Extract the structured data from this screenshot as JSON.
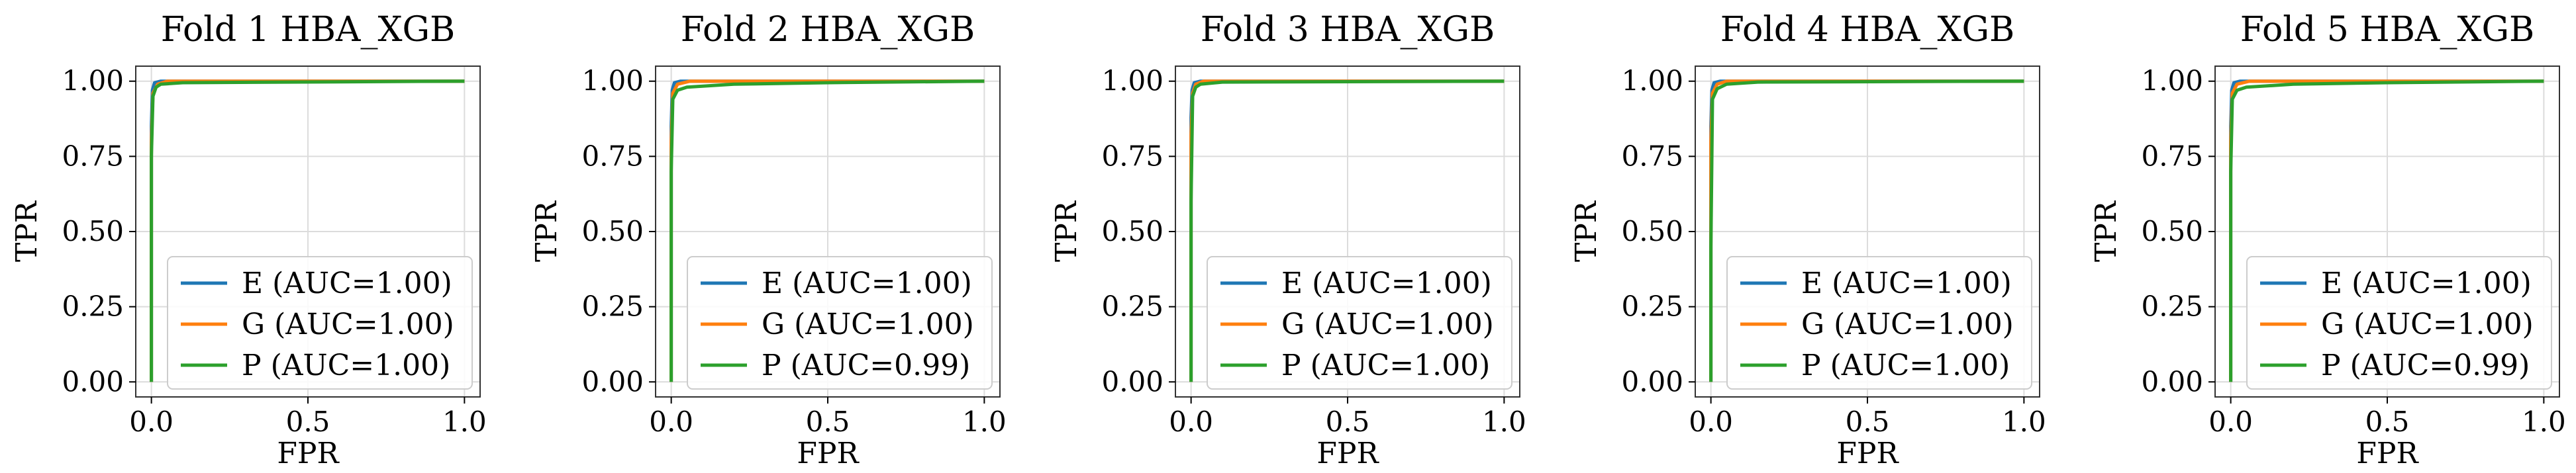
{
  "figure": {
    "colors": {
      "E": "#1f77b4",
      "G": "#ff7f0e",
      "P": "#2ca02c",
      "grid": "#dcdcdc",
      "frame": "#333333"
    }
  },
  "chart_data": [
    {
      "type": "line",
      "title": "Fold 1 HBA_XGB",
      "xlabel": "FPR",
      "ylabel": "TPR",
      "xlim": [
        0.0,
        1.0
      ],
      "ylim": [
        0.0,
        1.0
      ],
      "xticks": [
        "0.0",
        "0.5",
        "1.0"
      ],
      "yticks": [
        "0.00",
        "0.25",
        "0.50",
        "0.75",
        "1.00"
      ],
      "grid": true,
      "legend_position": "lower-right",
      "series": [
        {
          "name": "E (AUC=1.00)",
          "color": "#1f77b4",
          "x": [
            0,
            0,
            0.003,
            0.01,
            0.03,
            1.0
          ],
          "y": [
            0,
            0.85,
            0.97,
            0.995,
            1.0,
            1.0
          ]
        },
        {
          "name": "G (AUC=1.00)",
          "color": "#ff7f0e",
          "x": [
            0,
            0,
            0.005,
            0.02,
            0.05,
            1.0
          ],
          "y": [
            0,
            0.8,
            0.96,
            0.99,
            1.0,
            1.0
          ]
        },
        {
          "name": "P (AUC=1.00)",
          "color": "#2ca02c",
          "x": [
            0,
            0,
            0.005,
            0.015,
            0.03,
            0.1,
            1.0
          ],
          "y": [
            0,
            0.75,
            0.95,
            0.98,
            0.99,
            0.995,
            1.0
          ]
        }
      ]
    },
    {
      "type": "line",
      "title": "Fold 2 HBA_XGB",
      "xlabel": "FPR",
      "ylabel": "TPR",
      "xlim": [
        0.0,
        1.0
      ],
      "ylim": [
        0.0,
        1.0
      ],
      "xticks": [
        "0.0",
        "0.5",
        "1.0"
      ],
      "yticks": [
        "0.00",
        "0.25",
        "0.50",
        "0.75",
        "1.00"
      ],
      "grid": true,
      "legend_position": "lower-right",
      "series": [
        {
          "name": "E (AUC=1.00)",
          "color": "#1f77b4",
          "x": [
            0,
            0,
            0.003,
            0.01,
            0.03,
            1.0
          ],
          "y": [
            0,
            0.85,
            0.97,
            0.995,
            1.0,
            1.0
          ]
        },
        {
          "name": "G (AUC=1.00)",
          "color": "#ff7f0e",
          "x": [
            0,
            0,
            0.005,
            0.02,
            0.06,
            1.0
          ],
          "y": [
            0,
            0.8,
            0.96,
            0.99,
            1.0,
            1.0
          ]
        },
        {
          "name": "P (AUC=0.99)",
          "color": "#2ca02c",
          "x": [
            0,
            0,
            0.005,
            0.02,
            0.05,
            0.2,
            0.5,
            1.0
          ],
          "y": [
            0,
            0.7,
            0.94,
            0.97,
            0.98,
            0.99,
            0.995,
            1.0
          ]
        }
      ]
    },
    {
      "type": "line",
      "title": "Fold 3 HBA_XGB",
      "xlabel": "FPR",
      "ylabel": "TPR",
      "xlim": [
        0.0,
        1.0
      ],
      "ylim": [
        0.0,
        1.0
      ],
      "xticks": [
        "0.0",
        "0.5",
        "1.0"
      ],
      "yticks": [
        "0.00",
        "0.25",
        "0.50",
        "0.75",
        "1.00"
      ],
      "grid": true,
      "legend_position": "lower-right",
      "series": [
        {
          "name": "E (AUC=1.00)",
          "color": "#1f77b4",
          "x": [
            0,
            0,
            0.003,
            0.01,
            0.03,
            1.0
          ],
          "y": [
            0,
            0.88,
            0.97,
            0.995,
            1.0,
            1.0
          ]
        },
        {
          "name": "G (AUC=1.00)",
          "color": "#ff7f0e",
          "x": [
            0,
            0,
            0.005,
            0.015,
            0.04,
            1.0
          ],
          "y": [
            0,
            0.82,
            0.96,
            0.99,
            1.0,
            1.0
          ]
        },
        {
          "name": "P (AUC=1.00)",
          "color": "#2ca02c",
          "x": [
            0,
            0,
            0.005,
            0.015,
            0.03,
            0.1,
            1.0
          ],
          "y": [
            0,
            0.6,
            0.95,
            0.98,
            0.99,
            0.997,
            1.0
          ]
        }
      ]
    },
    {
      "type": "line",
      "title": "Fold 4 HBA_XGB",
      "xlabel": "FPR",
      "ylabel": "TPR",
      "xlim": [
        0.0,
        1.0
      ],
      "ylim": [
        0.0,
        1.0
      ],
      "xticks": [
        "0.0",
        "0.5",
        "1.0"
      ],
      "yticks": [
        "0.00",
        "0.25",
        "0.50",
        "0.75",
        "1.00"
      ],
      "grid": true,
      "legend_position": "lower-right",
      "series": [
        {
          "name": "E (AUC=1.00)",
          "color": "#1f77b4",
          "x": [
            0,
            0,
            0.003,
            0.01,
            0.03,
            1.0
          ],
          "y": [
            0,
            0.85,
            0.97,
            0.995,
            1.0,
            1.0
          ]
        },
        {
          "name": "G (AUC=1.00)",
          "color": "#ff7f0e",
          "x": [
            0,
            0,
            0.005,
            0.02,
            0.05,
            1.0
          ],
          "y": [
            0,
            0.8,
            0.96,
            0.99,
            1.0,
            1.0
          ]
        },
        {
          "name": "P (AUC=1.00)",
          "color": "#2ca02c",
          "x": [
            0,
            0,
            0.005,
            0.02,
            0.05,
            0.15,
            1.0
          ],
          "y": [
            0,
            0.45,
            0.94,
            0.975,
            0.99,
            0.997,
            1.0
          ]
        }
      ]
    },
    {
      "type": "line",
      "title": "Fold 5 HBA_XGB",
      "xlabel": "FPR",
      "ylabel": "TPR",
      "xlim": [
        0.0,
        1.0
      ],
      "ylim": [
        0.0,
        1.0
      ],
      "xticks": [
        "0.0",
        "0.5",
        "1.0"
      ],
      "yticks": [
        "0.00",
        "0.25",
        "0.50",
        "0.75",
        "1.00"
      ],
      "grid": true,
      "legend_position": "lower-right",
      "series": [
        {
          "name": "E (AUC=1.00)",
          "color": "#1f77b4",
          "x": [
            0,
            0,
            0.003,
            0.01,
            0.03,
            1.0
          ],
          "y": [
            0,
            0.85,
            0.97,
            0.995,
            1.0,
            1.0
          ]
        },
        {
          "name": "G (AUC=1.00)",
          "color": "#ff7f0e",
          "x": [
            0,
            0,
            0.005,
            0.02,
            0.06,
            1.0
          ],
          "y": [
            0,
            0.8,
            0.96,
            0.99,
            1.0,
            1.0
          ]
        },
        {
          "name": "P (AUC=0.99)",
          "color": "#2ca02c",
          "x": [
            0,
            0,
            0.005,
            0.02,
            0.05,
            0.2,
            0.5,
            1.0
          ],
          "y": [
            0,
            0.7,
            0.94,
            0.97,
            0.98,
            0.99,
            0.995,
            1.0
          ]
        }
      ]
    }
  ]
}
